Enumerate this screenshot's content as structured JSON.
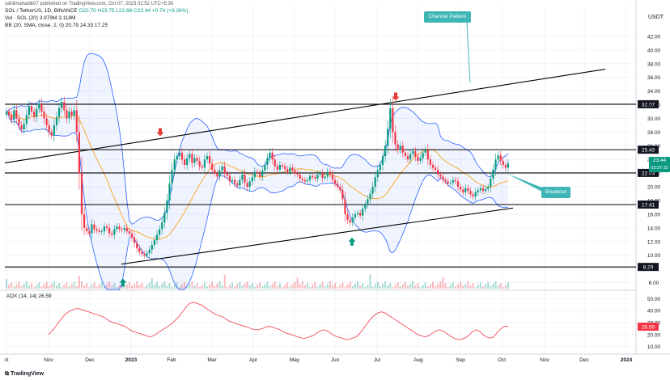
{
  "header": {
    "published": "sahilmahadik07 published on TradingView.com, Oct 07, 2023 01:52 UTC+5:30",
    "symbol": "SOL / TetherUS, 1D, BINANCE",
    "ohlc": "O22.70 H23.75 L22.66 C23.44 +0.74 (+3.26%)",
    "vol": "Vol · SOL (20)  3.979M  3.118M",
    "bb": "BB (20, SMA, close, 2, 0)  20.79  24.33  17.25",
    "currency": "USDT"
  },
  "callouts": {
    "channel": "Channel Pattern",
    "breakout": "Breakout"
  },
  "price_tags": {
    "current": "23.44",
    "countdown": "03:37:32"
  },
  "adx_label": "ADX (14, 14)  26.59",
  "footer": "TradingView",
  "colors": {
    "up": "#089981",
    "down": "#f23645",
    "bb": "#2962ff",
    "sma": "#ff9800",
    "adx": "#f23645",
    "callout": "#3fb6b6"
  },
  "chart_data": {
    "type": "candlestick",
    "x_labels": [
      "ct",
      "Nov",
      "Dec",
      "2023",
      "Feb",
      "Mar",
      "Apr",
      "May",
      "Jun",
      "Jul",
      "Aug",
      "Sep",
      "Oct",
      "Nov",
      "Dec",
      "2024"
    ],
    "y_ticks": [
      6,
      8,
      10,
      12,
      14,
      16,
      18,
      20,
      22,
      24,
      26,
      28,
      30,
      32,
      34,
      36,
      38,
      40,
      42
    ],
    "ylim": [
      5,
      44
    ],
    "horizontal_levels": [
      32.07,
      25.43,
      22.03,
      17.41,
      8.29
    ],
    "adx_ticks": [
      10,
      20,
      30,
      40,
      50
    ],
    "adx_ylim": [
      5,
      55
    ],
    "closes": [
      31,
      30.5,
      29.8,
      31.2,
      30,
      29,
      28.4,
      29.2,
      30.5,
      31.8,
      31,
      30.2,
      31.4,
      32.2,
      31,
      30,
      29,
      28,
      27.5,
      29,
      30.2,
      31.5,
      32.4,
      31.2,
      30,
      31,
      30.4,
      31.2,
      28,
      22,
      16,
      14,
      13.5,
      13.2,
      14.5,
      13.8,
      13.6,
      13.4,
      13.5,
      14.2,
      14,
      13.2,
      13,
      13.8,
      14.2,
      13.8,
      13.7,
      14,
      13.5,
      13.2,
      12.6,
      11.8,
      11,
      10.5,
      10.2,
      10,
      10.3,
      10.8,
      11.5,
      12.2,
      13,
      13.8,
      14.8,
      16.2,
      18,
      20.5,
      22.5,
      24,
      24.5,
      25,
      24,
      23.2,
      24.2,
      24.8,
      23.5,
      24.2,
      23.8,
      23,
      22.8,
      24,
      24.5,
      23.4,
      22.5,
      22,
      21.5,
      22.4,
      23,
      22,
      21.6,
      20.8,
      21,
      20.5,
      20.2,
      21,
      21.8,
      20.6,
      20,
      20.8,
      21.4,
      22.2,
      22,
      21.5,
      22.4,
      23.2,
      24.2,
      25,
      24,
      23,
      22.5,
      23.2,
      23,
      22.6,
      22.2,
      22.8,
      22.4,
      22,
      21.8,
      21.2,
      21,
      20.8,
      21,
      21.6,
      21.4,
      21.2,
      21.8,
      22,
      21.3,
      21.5,
      22.2,
      21.8,
      21,
      20.5,
      20,
      19.5,
      18.2,
      16,
      15.2,
      14.8,
      15.5,
      16,
      16.2,
      15.8,
      16.8,
      17.4,
      18.2,
      19,
      20,
      21.4,
      22.4,
      23.2,
      24.5,
      26,
      28.5,
      31.5,
      28,
      26.2,
      25.4,
      26,
      25,
      24.5,
      24,
      24.8,
      25.2,
      24.4,
      23.8,
      24.2,
      25,
      25.4,
      24,
      23.2,
      22.8,
      22.5,
      21.8,
      21.5,
      21,
      20.8,
      20.5,
      20.6,
      21,
      20.8,
      20,
      19.6,
      19.2,
      19.8,
      19.4,
      18.9,
      18.6,
      19.2,
      19.5,
      19.8,
      19.4,
      19.7,
      20,
      21.2,
      22.5,
      24,
      24.6,
      23.8,
      23.2,
      22.8,
      23.44
    ],
    "adx": [
      20,
      23,
      27,
      31,
      35,
      38,
      40,
      41,
      42,
      41,
      40,
      39,
      38,
      37,
      36,
      35,
      33,
      31,
      30,
      29,
      28,
      27,
      25,
      23,
      22,
      21,
      20,
      19,
      18,
      19,
      21,
      23,
      25,
      27,
      29,
      32,
      35,
      39,
      43,
      46,
      47,
      46,
      45,
      43,
      41,
      39,
      37,
      36,
      35,
      33,
      31,
      30,
      29,
      28,
      27,
      26,
      25,
      24,
      24,
      25,
      26,
      27,
      26,
      25,
      24,
      22,
      21,
      20,
      19,
      18,
      17,
      17,
      18,
      19,
      21,
      23,
      24,
      23,
      21,
      19,
      18,
      17,
      16,
      16,
      17,
      18,
      21,
      25,
      29,
      33,
      36,
      38,
      39,
      38,
      36,
      34,
      32,
      30,
      28,
      26,
      24,
      22,
      20,
      19,
      18,
      19,
      21,
      23,
      24,
      23,
      21,
      19,
      17,
      16,
      16,
      17,
      19,
      22,
      24,
      23,
      20,
      18,
      17,
      18,
      22,
      25,
      27,
      26.59
    ]
  }
}
